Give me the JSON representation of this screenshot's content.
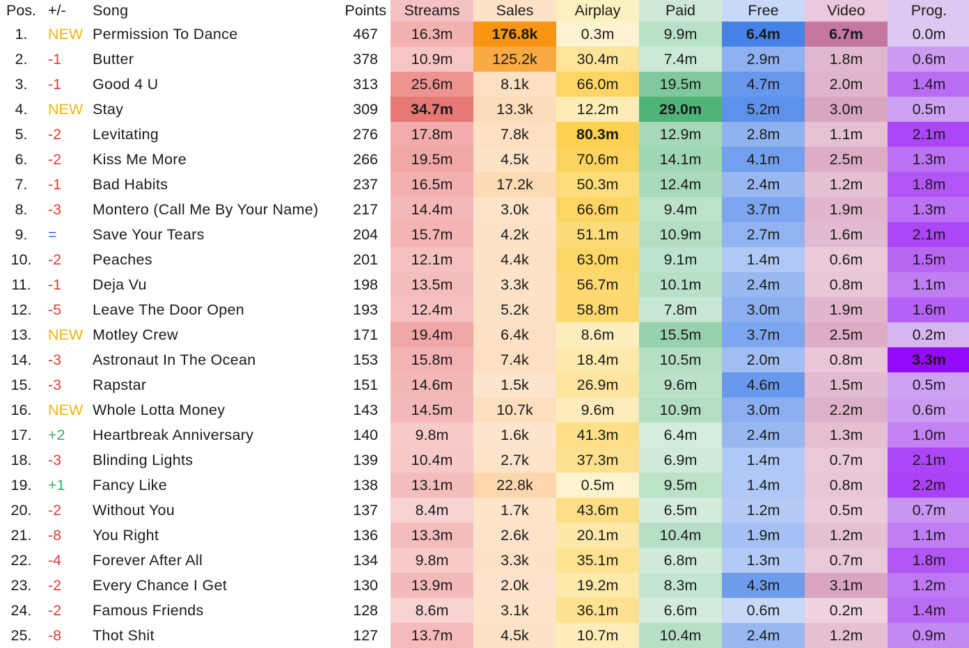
{
  "headers": [
    "Pos.",
    "+/-",
    "Song",
    "Points",
    "Streams",
    "Sales",
    "Airplay",
    "Paid",
    "Free",
    "Video",
    "Prog."
  ],
  "header_colors": {
    "Streams": "#f4c2c2",
    "Sales": "#fde2c8",
    "Airplay": "#fdf0c0",
    "Paid": "#cfe8d6",
    "Free": "#c8d8f8",
    "Video": "#ecc8dc",
    "Prog.": "#dcc8f0"
  },
  "change_colors": {
    "new": "#f5b60a",
    "down": "#e53935",
    "up": "#2fb36b",
    "same": "#2a6ee0"
  },
  "rows": [
    {
      "pos": "1.",
      "chg": "NEW",
      "song": "Permission To Dance",
      "points": "467",
      "streams": "16.3m",
      "sales": "176.8k",
      "airplay": "0.3m",
      "paid": "9.9m",
      "free": "6.4m",
      "video": "6.7m",
      "prog": "0.0m"
    },
    {
      "pos": "2.",
      "chg": "-1",
      "song": "Butter",
      "points": "378",
      "streams": "10.9m",
      "sales": "125.2k",
      "airplay": "30.4m",
      "paid": "7.4m",
      "free": "2.9m",
      "video": "1.8m",
      "prog": "0.6m"
    },
    {
      "pos": "3.",
      "chg": "-1",
      "song": "Good 4 U",
      "points": "313",
      "streams": "25.6m",
      "sales": "8.1k",
      "airplay": "66.0m",
      "paid": "19.5m",
      "free": "4.7m",
      "video": "2.0m",
      "prog": "1.4m"
    },
    {
      "pos": "4.",
      "chg": "NEW",
      "song": "Stay",
      "points": "309",
      "streams": "34.7m",
      "sales": "13.3k",
      "airplay": "12.2m",
      "paid": "29.0m",
      "free": "5.2m",
      "video": "3.0m",
      "prog": "0.5m"
    },
    {
      "pos": "5.",
      "chg": "-2",
      "song": " Levitating",
      "points": "276",
      "streams": "17.8m",
      "sales": "7.8k",
      "airplay": "80.3m",
      "paid": "12.9m",
      "free": "2.8m",
      "video": "1.1m",
      "prog": "2.1m"
    },
    {
      "pos": "6.",
      "chg": "-2",
      "song": "Kiss Me More",
      "points": "266",
      "streams": "19.5m",
      "sales": "4.5k",
      "airplay": "70.6m",
      "paid": "14.1m",
      "free": "4.1m",
      "video": "2.5m",
      "prog": "1.3m"
    },
    {
      "pos": "7.",
      "chg": "-1",
      "song": "Bad Habits",
      "points": "237",
      "streams": "16.5m",
      "sales": "17.2k",
      "airplay": "50.3m",
      "paid": "12.4m",
      "free": "2.4m",
      "video": "1.2m",
      "prog": "1.8m"
    },
    {
      "pos": "8.",
      "chg": "-3",
      "song": "Montero (Call Me By Your Name)",
      "points": "217",
      "streams": "14.4m",
      "sales": "3.0k",
      "airplay": "66.6m",
      "paid": "9.4m",
      "free": "3.7m",
      "video": "1.9m",
      "prog": "1.3m"
    },
    {
      "pos": "9.",
      "chg": "=",
      "song": "Save Your Tears",
      "points": "204",
      "streams": "15.7m",
      "sales": "4.2k",
      "airplay": "51.1m",
      "paid": "10.9m",
      "free": "2.7m",
      "video": "1.6m",
      "prog": "2.1m"
    },
    {
      "pos": "10.",
      "chg": "-2",
      "song": "Peaches",
      "points": "201",
      "streams": "12.1m",
      "sales": "4.4k",
      "airplay": "63.0m",
      "paid": "9.1m",
      "free": "1.4m",
      "video": "0.6m",
      "prog": "1.5m"
    },
    {
      "pos": "11.",
      "chg": "-1",
      "song": "Deja Vu",
      "points": "198",
      "streams": "13.5m",
      "sales": "3.3k",
      "airplay": "56.7m",
      "paid": "10.1m",
      "free": "2.4m",
      "video": "0.8m",
      "prog": "1.1m"
    },
    {
      "pos": "12.",
      "chg": "-5",
      "song": "Leave The Door Open",
      "points": "193",
      "streams": "12.4m",
      "sales": "5.2k",
      "airplay": "58.8m",
      "paid": "7.8m",
      "free": "3.0m",
      "video": "1.9m",
      "prog": "1.6m"
    },
    {
      "pos": "13.",
      "chg": "NEW",
      "song": "Motley Crew",
      "points": "171",
      "streams": "19.4m",
      "sales": "6.4k",
      "airplay": "8.6m",
      "paid": "15.5m",
      "free": "3.7m",
      "video": "2.5m",
      "prog": "0.2m"
    },
    {
      "pos": "14.",
      "chg": "-3",
      "song": "Astronaut In The Ocean",
      "points": "153",
      "streams": "15.8m",
      "sales": "7.4k",
      "airplay": "18.4m",
      "paid": "10.5m",
      "free": "2.0m",
      "video": "0.8m",
      "prog": "3.3m"
    },
    {
      "pos": "15.",
      "chg": "-3",
      "song": "Rapstar",
      "points": "151",
      "streams": "14.6m",
      "sales": "1.5k",
      "airplay": "26.9m",
      "paid": "9.6m",
      "free": "4.6m",
      "video": "1.5m",
      "prog": "0.5m"
    },
    {
      "pos": "16.",
      "chg": "NEW",
      "song": "Whole Lotta Money",
      "points": "143",
      "streams": "14.5m",
      "sales": "10.7k",
      "airplay": "9.6m",
      "paid": "10.9m",
      "free": "3.0m",
      "video": "2.2m",
      "prog": "0.6m"
    },
    {
      "pos": "17.",
      "chg": "+2",
      "song": "Heartbreak Anniversary",
      "points": "140",
      "streams": "9.8m",
      "sales": "1.6k",
      "airplay": "41.3m",
      "paid": "6.4m",
      "free": "2.4m",
      "video": "1.3m",
      "prog": "1.0m"
    },
    {
      "pos": "18.",
      "chg": "-3",
      "song": "Blinding Lights",
      "points": "139",
      "streams": "10.4m",
      "sales": "2.7k",
      "airplay": "37.3m",
      "paid": "6.9m",
      "free": "1.4m",
      "video": "0.7m",
      "prog": "2.1m"
    },
    {
      "pos": "19.",
      "chg": "+1",
      "song": "Fancy Like",
      "points": "138",
      "streams": "13.1m",
      "sales": "22.8k",
      "airplay": "0.5m",
      "paid": "9.5m",
      "free": "1.4m",
      "video": "0.8m",
      "prog": "2.2m"
    },
    {
      "pos": "20.",
      "chg": "-2",
      "song": "Without You",
      "points": "137",
      "streams": "8.4m",
      "sales": "1.7k",
      "airplay": "43.6m",
      "paid": "6.5m",
      "free": "1.2m",
      "video": "0.5m",
      "prog": "0.7m"
    },
    {
      "pos": "21.",
      "chg": "-8",
      "song": "You Right",
      "points": "136",
      "streams": "13.3m",
      "sales": "2.6k",
      "airplay": "20.1m",
      "paid": "10.4m",
      "free": "1.9m",
      "video": "1.2m",
      "prog": "1.1m"
    },
    {
      "pos": "22.",
      "chg": "-4",
      "song": "Forever After All",
      "points": "134",
      "streams": "9.8m",
      "sales": "3.3k",
      "airplay": "35.1m",
      "paid": "6.8m",
      "free": "1.3m",
      "video": "0.7m",
      "prog": "1.8m"
    },
    {
      "pos": "23.",
      "chg": "-2",
      "song": "Every Chance I Get",
      "points": "130",
      "streams": "13.9m",
      "sales": "2.0k",
      "airplay": "19.2m",
      "paid": "8.3m",
      "free": "4.3m",
      "video": "3.1m",
      "prog": "1.2m"
    },
    {
      "pos": "24.",
      "chg": "-2",
      "song": "Famous Friends",
      "points": "128",
      "streams": "8.6m",
      "sales": "3.1k",
      "airplay": "36.1m",
      "paid": "6.6m",
      "free": "0.6m",
      "video": "0.2m",
      "prog": "1.4m"
    },
    {
      "pos": "25.",
      "chg": "-8",
      "song": "Thot Shit",
      "points": "127",
      "streams": "13.7m",
      "sales": "4.5k",
      "airplay": "10.7m",
      "paid": "10.4m",
      "free": "2.4m",
      "video": "1.2m",
      "prog": "0.9m"
    }
  ]
}
